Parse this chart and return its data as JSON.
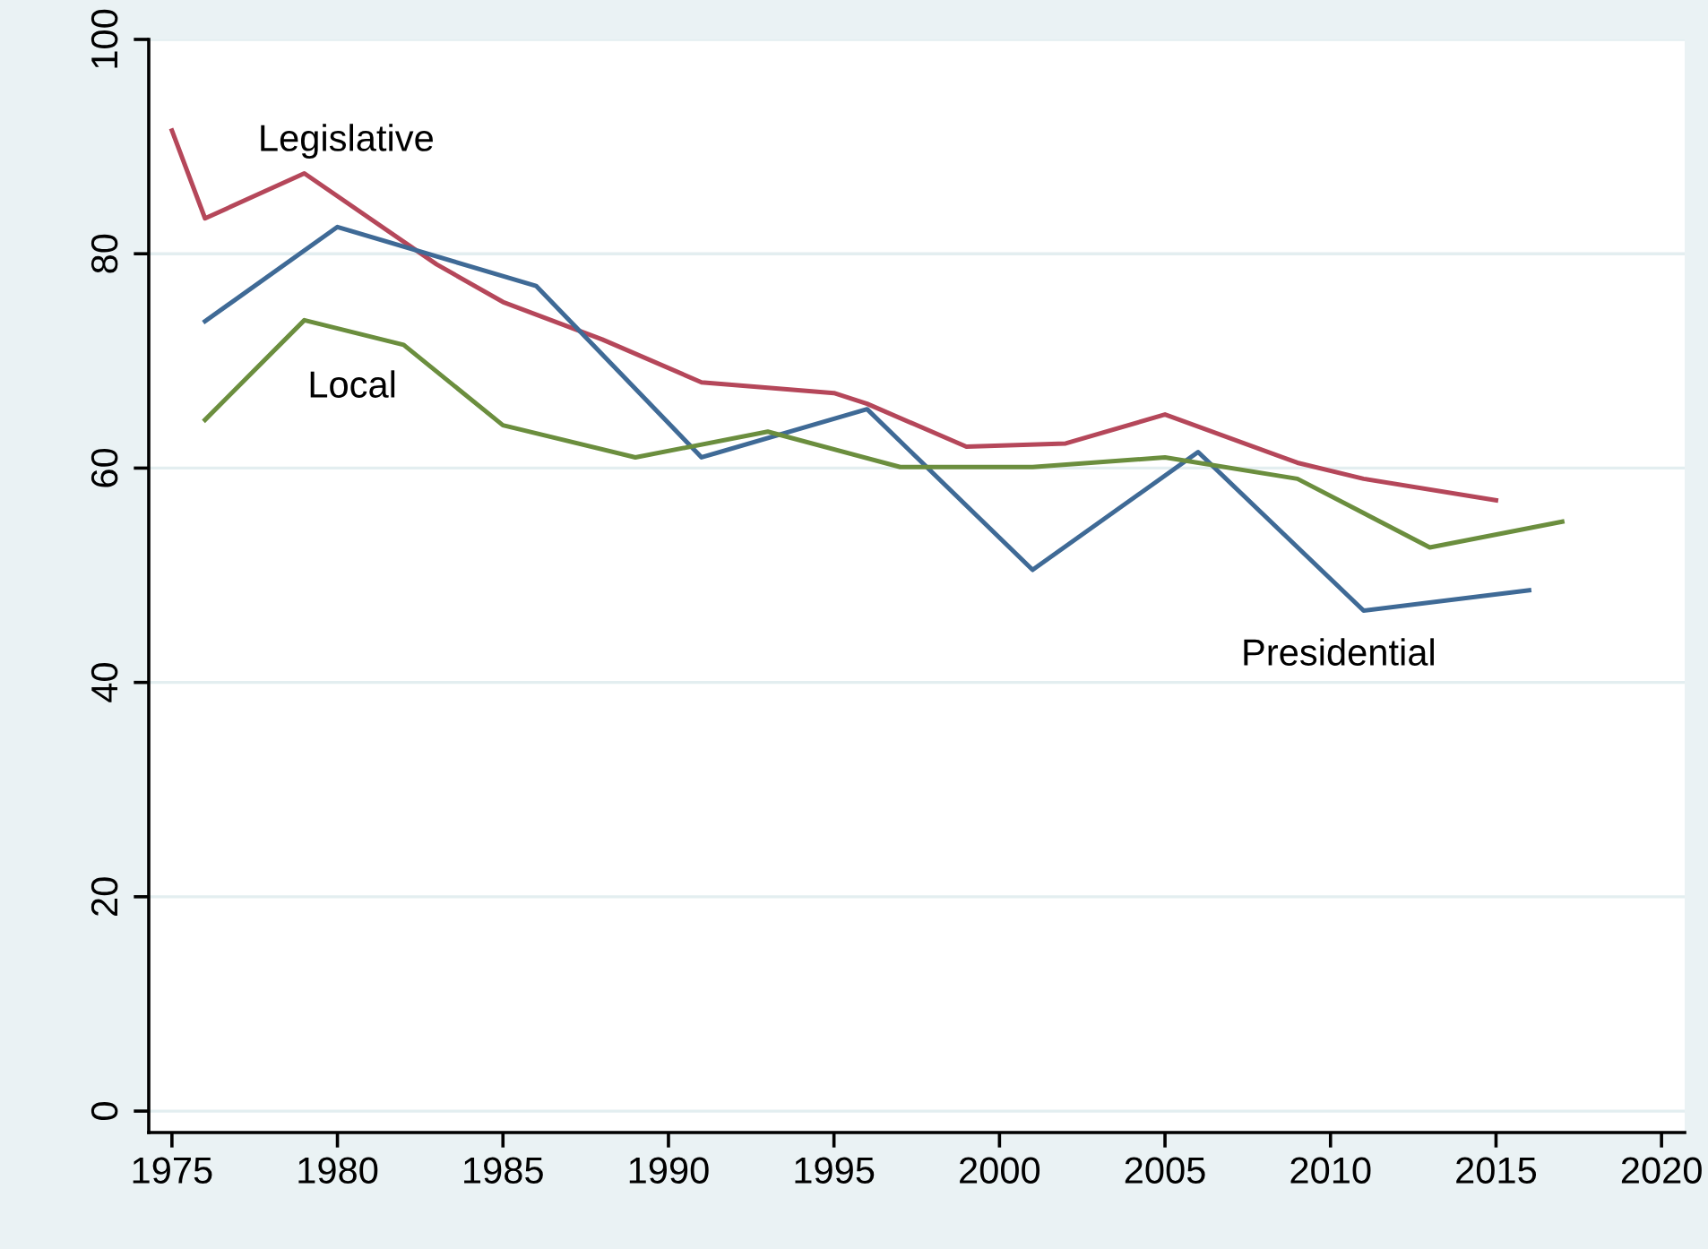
{
  "chart_data": {
    "type": "line",
    "xlim": [
      1974.3,
      2020.7
    ],
    "xticks": [
      1975,
      1980,
      1985,
      1990,
      1995,
      2000,
      2005,
      2010,
      2015,
      2020
    ],
    "ylim": [
      -2,
      100
    ],
    "yticks": [
      0,
      20,
      40,
      60,
      80,
      100
    ],
    "grid": "y",
    "legend": false,
    "marker": "none",
    "line_style": "solid",
    "series": [
      {
        "name": "Legislative",
        "color": "#b5475a",
        "x": [
          1975,
          1976,
          1979,
          1983,
          1985,
          1988,
          1991,
          1995,
          1996,
          1999,
          2002,
          2005,
          2009,
          2011,
          2015
        ],
        "values": [
          91.5,
          83.3,
          87.5,
          79,
          75.5,
          72,
          68,
          67,
          66,
          62,
          62.3,
          65,
          60.5,
          59,
          57
        ]
      },
      {
        "name": "Presidential",
        "color": "#3f6a96",
        "x": [
          1976,
          1980,
          1986,
          1991,
          1996,
          2001,
          2006,
          2011,
          2016
        ],
        "values": [
          73.7,
          82.5,
          77,
          61,
          65.5,
          50.5,
          61.5,
          46.7,
          48.6
        ]
      },
      {
        "name": "Local",
        "color": "#6b8e3e",
        "x": [
          1976,
          1979,
          1982,
          1985,
          1989,
          1993,
          1997,
          2001,
          2005,
          2009,
          2013,
          2017
        ],
        "values": [
          64.5,
          73.8,
          71.5,
          64,
          61,
          63.4,
          60.1,
          60.1,
          61,
          59,
          52.6,
          55
        ]
      }
    ]
  }
}
